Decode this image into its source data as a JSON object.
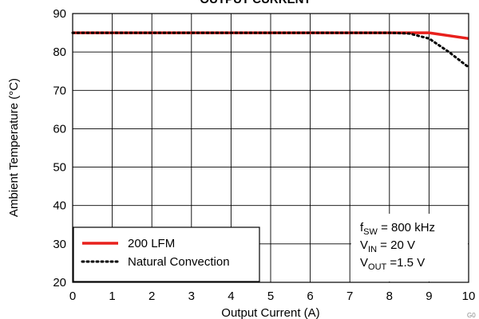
{
  "chart_data": {
    "type": "line",
    "title": "OUTPUT CURRENT",
    "xlabel": "Output Current (A)",
    "ylabel": "Ambient Temperature (°C)",
    "xlim": [
      0,
      10
    ],
    "ylim": [
      20,
      90
    ],
    "xticks": [
      "0",
      "1",
      "2",
      "3",
      "4",
      "5",
      "6",
      "7",
      "8",
      "9",
      "10"
    ],
    "yticks": [
      "20",
      "30",
      "40",
      "50",
      "60",
      "70",
      "80",
      "90"
    ],
    "grid": true,
    "legend_position": "bottom-left",
    "series": [
      {
        "name": "200 LFM",
        "color": "#e8201c",
        "style": "solid",
        "x": [
          0,
          1,
          2,
          3,
          4,
          5,
          6,
          7,
          8,
          9,
          10
        ],
        "y": [
          85,
          85,
          85,
          85,
          85,
          85,
          85,
          85,
          85,
          85,
          83.5
        ]
      },
      {
        "name": "Natural Convection",
        "color": "#000000",
        "style": "dotted",
        "x": [
          0,
          1,
          2,
          3,
          4,
          5,
          6,
          7,
          8,
          8.5,
          9,
          9.5,
          10
        ],
        "y": [
          85,
          85,
          85,
          85,
          85,
          85,
          85,
          85,
          85,
          84.8,
          83.5,
          80,
          76
        ]
      }
    ],
    "conditions": {
      "fsw": {
        "main": "f",
        "sub": "SW",
        "rest": " = 800 kHz"
      },
      "vin": {
        "main": "V",
        "sub": "IN",
        "rest": " = 20 V"
      },
      "vout": {
        "main": "V",
        "sub": "OUT",
        "rest": " =1.5 V"
      }
    },
    "corner_note": "G0"
  }
}
